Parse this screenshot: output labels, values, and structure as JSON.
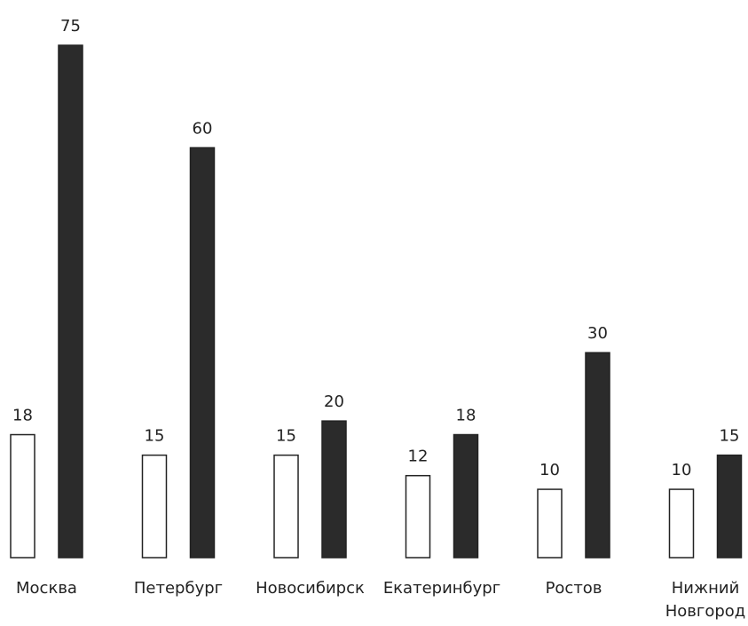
{
  "chart_data": {
    "type": "bar",
    "categories": [
      "Москва",
      "Петербург",
      "Новосибирск",
      "Екатеринбург",
      "Ростов",
      "Нижний Новгород"
    ],
    "category_lines": [
      [
        "Москва"
      ],
      [
        "Петербург"
      ],
      [
        "Новосибирск"
      ],
      [
        "Екатеринбург"
      ],
      [
        "Ростов"
      ],
      [
        "Нижний",
        "Новгород"
      ]
    ],
    "series": [
      {
        "values": [
          18,
          15,
          15,
          12,
          10,
          10
        ],
        "color": "#ffffff",
        "stroke": "#222222"
      },
      {
        "values": [
          75,
          60,
          20,
          18,
          30,
          15
        ],
        "color": "#2b2b2b",
        "stroke": "#222222"
      }
    ],
    "ylim": [
      0,
      75
    ],
    "grid": false,
    "axes_visible": false
  }
}
